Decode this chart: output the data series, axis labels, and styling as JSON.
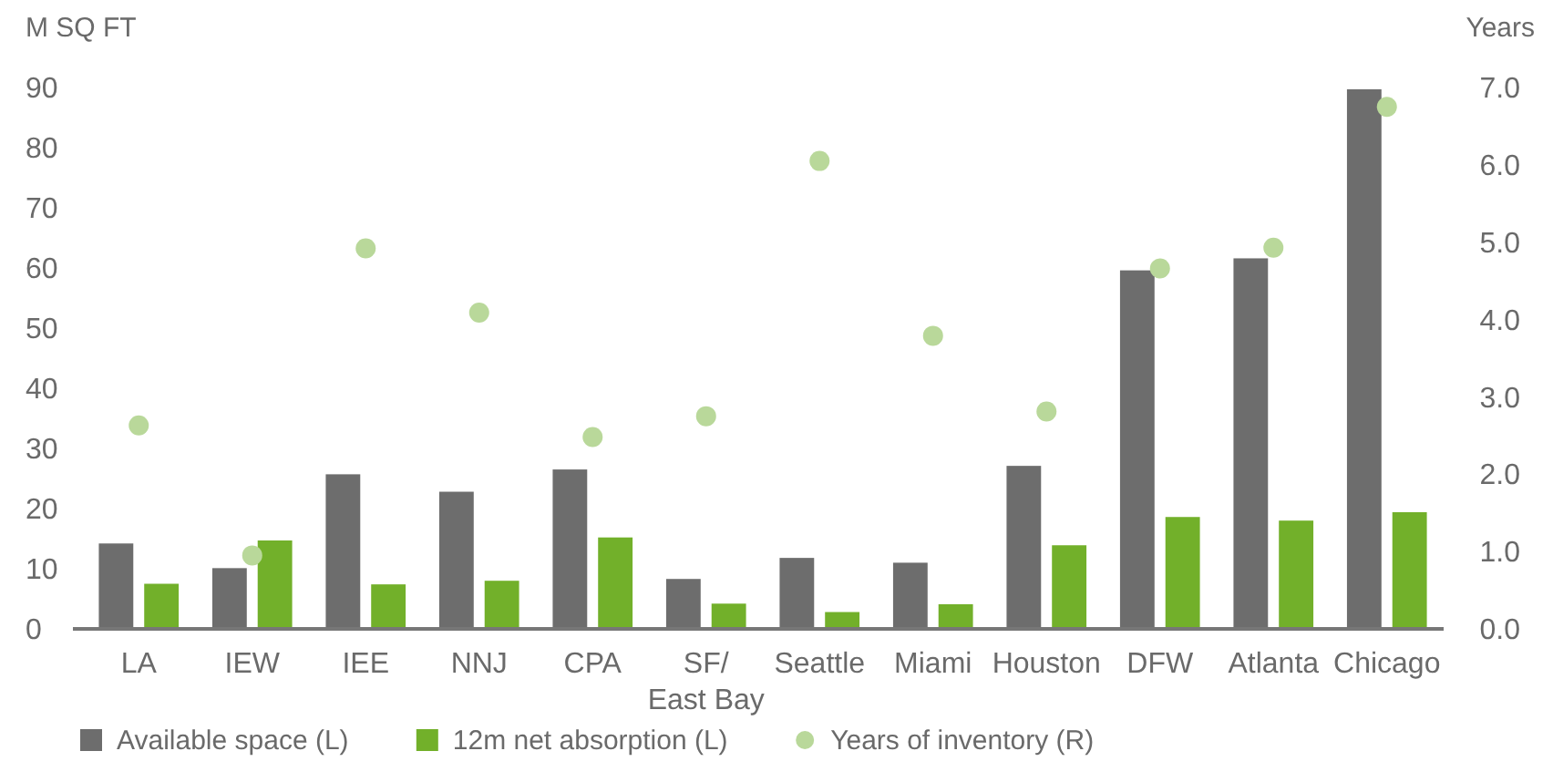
{
  "chart_data": {
    "type": "bar",
    "ylabel": "M SQ FT",
    "y2label": "Years",
    "categories": [
      "LA",
      "IEW",
      "IEE",
      "NNJ",
      "CPA",
      "SF/\nEast Bay",
      "Seattle",
      "Miami",
      "Houston",
      "DFW",
      "Atlanta",
      "Chicago"
    ],
    "series": [
      {
        "name": "Available space (L)",
        "color": "#6d6d6d",
        "values": [
          14.2,
          10.1,
          25.7,
          22.8,
          26.5,
          8.3,
          11.8,
          11.0,
          27.1,
          59.6,
          61.6,
          89.7
        ]
      },
      {
        "name": "12m net absorption (L)",
        "color": "#72b02a",
        "values": [
          7.5,
          14.7,
          7.4,
          8.0,
          15.2,
          4.2,
          2.8,
          4.1,
          13.9,
          18.6,
          18.0,
          19.4
        ]
      },
      {
        "name": "Years of inventory (R)",
        "type": "scatter",
        "axis": "y2",
        "color": "#b9d89a",
        "values": [
          2.63,
          0.95,
          4.92,
          4.09,
          2.48,
          2.75,
          6.05,
          3.79,
          2.81,
          4.66,
          4.93,
          6.75
        ]
      }
    ],
    "ylim": [
      0,
      90
    ],
    "yticks": [
      0,
      10,
      20,
      30,
      40,
      50,
      60,
      70,
      80,
      90
    ],
    "y2lim": [
      0,
      7
    ],
    "y2ticks": [
      {
        "value": 0,
        "label": "0.0"
      },
      {
        "value": 1,
        "label": "1.0"
      },
      {
        "value": 2,
        "label": "2.0"
      },
      {
        "value": 3,
        "label": "3.0"
      },
      {
        "value": 4,
        "label": "4.0"
      },
      {
        "value": 5,
        "label": "5.0"
      },
      {
        "value": 6,
        "label": "6.0"
      },
      {
        "value": 7,
        "label": "7.0"
      }
    ],
    "grid": false,
    "legend": "bottom",
    "marker": "circle"
  }
}
